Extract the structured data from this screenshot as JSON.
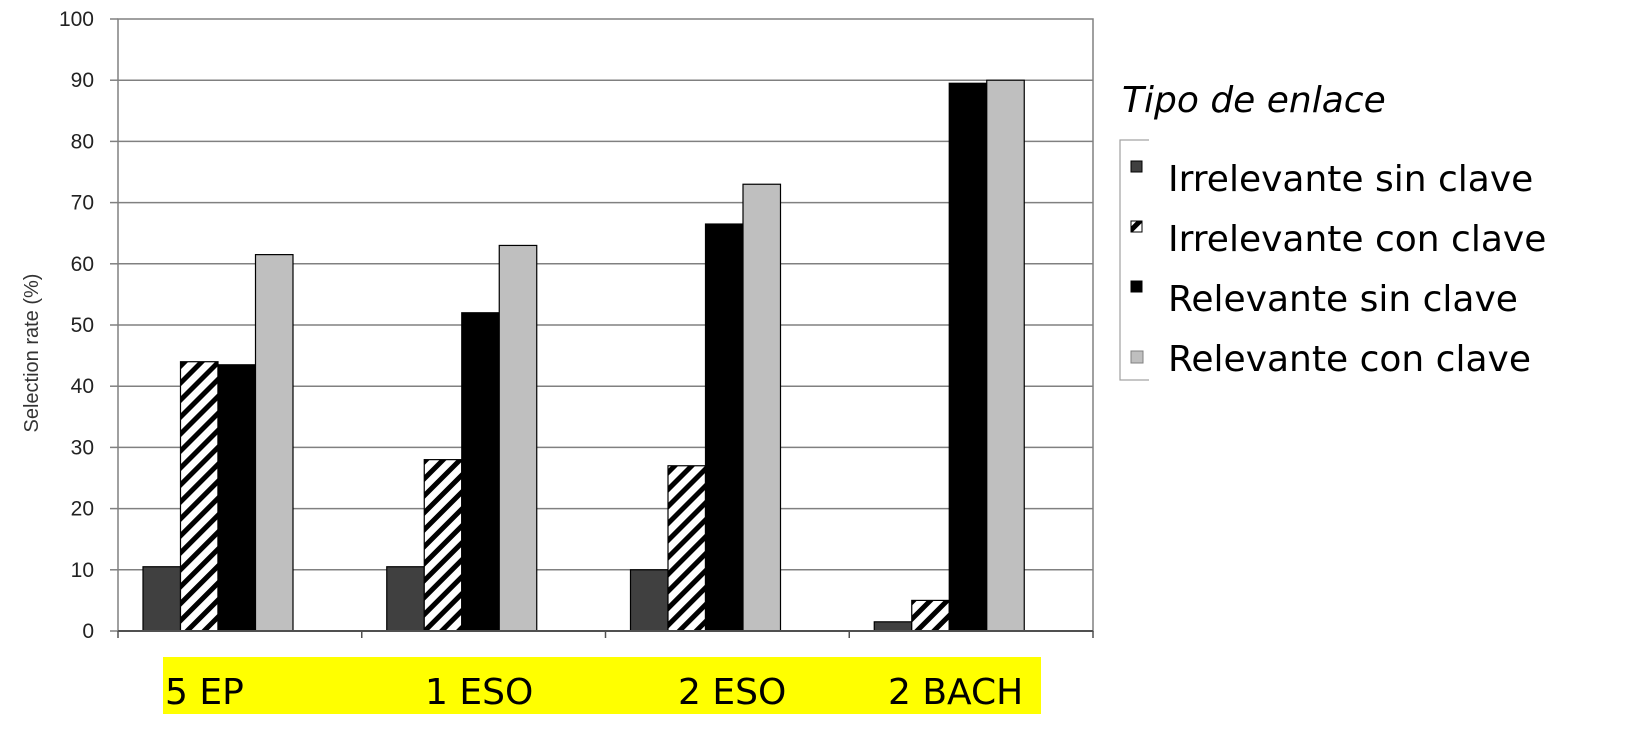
{
  "chart_data": {
    "type": "bar",
    "ylabel": "Selection rate (%)",
    "ylim": [
      0,
      100
    ],
    "yticks": [
      "0",
      "10",
      "20",
      "30",
      "40",
      "50",
      "60",
      "70",
      "80",
      "90",
      "100"
    ],
    "grid": true,
    "categories": [
      "5 EP",
      "1 ESO",
      "2 ESO",
      "2 BACH"
    ],
    "category_highlight_color": "#ffff00",
    "legend": {
      "title": "Tipo de enlace",
      "placement": "right"
    },
    "series": [
      {
        "name": "Irrelevante sin clave",
        "values": [
          10.5,
          10.5,
          10,
          1.5
        ],
        "color": "#404040",
        "pattern": "solid"
      },
      {
        "name": "Irrelevante con clave",
        "values": [
          44,
          28,
          27,
          5
        ],
        "color": "#000000",
        "pattern": "hatch"
      },
      {
        "name": "Relevante sin clave",
        "values": [
          43.5,
          52,
          66.5,
          89.5
        ],
        "color": "#000000",
        "pattern": "solid"
      },
      {
        "name": "Relevante con clave",
        "values": [
          61.5,
          63,
          73,
          90
        ],
        "color": "#bfbfbf",
        "pattern": "solid"
      }
    ]
  }
}
